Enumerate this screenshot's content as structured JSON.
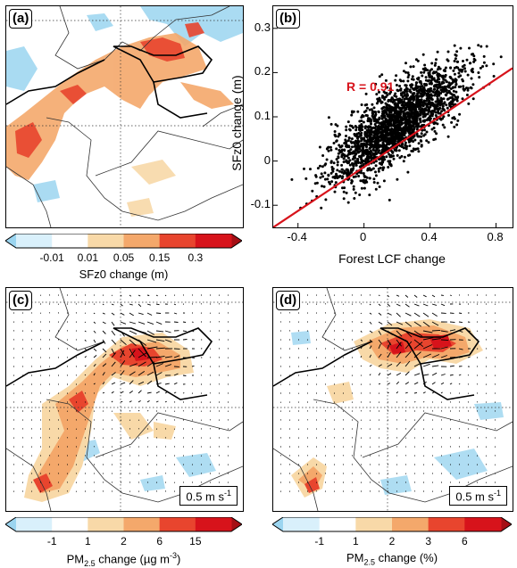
{
  "panels": {
    "a": {
      "label": "(a)",
      "colorbar": {
        "ticks": [
          "-0.01",
          "0.01",
          "0.05",
          "0.15",
          "0.3"
        ],
        "title": "SFz0 change (m)",
        "colors": [
          "#9bd5f0",
          "#d9f0fb",
          "#ffffff",
          "#f8d9a8",
          "#f4a86b",
          "#e8452e",
          "#d7131b",
          "#a50f15"
        ]
      }
    },
    "b": {
      "label": "(b)"
    },
    "c": {
      "label": "(c)",
      "ref_vector": "0.5 m s",
      "ref_sup": "-1",
      "colorbar": {
        "ticks": [
          "-1",
          "1",
          "2",
          "6",
          "15"
        ],
        "title_pre": "PM",
        "title_sub": "2.5",
        "title_post": " change (µg m",
        "title_sup": "-3",
        "title_end": ")",
        "colors": [
          "#9bd5f0",
          "#d9f0fb",
          "#ffffff",
          "#f8d9a8",
          "#f4a86b",
          "#e8452e",
          "#d7131b",
          "#a50f15"
        ]
      }
    },
    "d": {
      "label": "(d)",
      "ref_vector": "0.5 m s",
      "ref_sup": "-1",
      "colorbar": {
        "ticks": [
          "-1",
          "1",
          "2",
          "3",
          "6"
        ],
        "title_pre": "PM",
        "title_sub": "2.5",
        "title_post": " change (%)",
        "colors": [
          "#9bd5f0",
          "#d9f0fb",
          "#ffffff",
          "#f8d9a8",
          "#f4a86b",
          "#e8452e",
          "#d7131b",
          "#a50f15"
        ]
      }
    }
  },
  "chart_data": {
    "type": "scatter",
    "title": "",
    "xlabel": "Forest LCF change",
    "ylabel": "SFz0 change (m)",
    "xlim": [
      -0.55,
      0.9
    ],
    "ylim": [
      -0.15,
      0.35
    ],
    "xticks": [
      "-0.4",
      "0",
      "0.4",
      "0.8"
    ],
    "xtick_values": [
      -0.4,
      0,
      0.4,
      0.8
    ],
    "yticks": [
      "-0.1",
      "0",
      "0.1",
      "0.2",
      "0.3"
    ],
    "ytick_values": [
      -0.1,
      0,
      0.1,
      0.2,
      0.3
    ],
    "annotation": "R = 0.91",
    "fit_line": {
      "x": [
        -0.55,
        0.9
      ],
      "y": [
        -0.15,
        0.21
      ],
      "color": "#d7131b"
    },
    "point_color": "#000000",
    "cloud": {
      "n": 2200,
      "slope": 0.25,
      "intercept": 0.035,
      "x_mean": 0.2,
      "x_sd": 0.2,
      "y_sd": 0.04,
      "seed": 7
    }
  }
}
